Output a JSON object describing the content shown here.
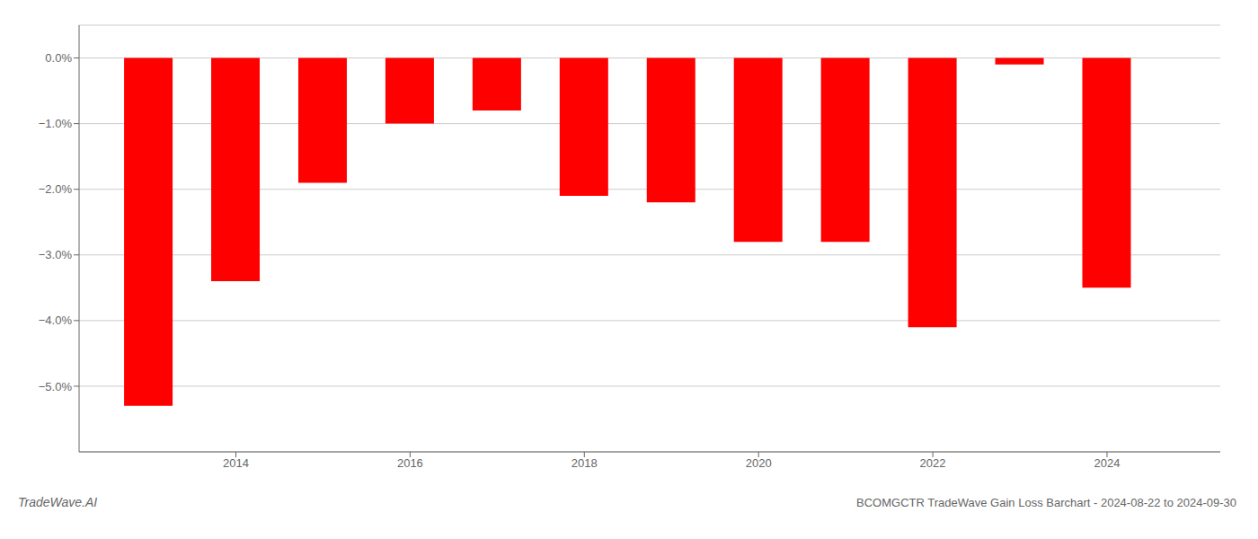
{
  "chart_data": {
    "type": "bar",
    "title": "BCOMGCTR TradeWave Gain Loss Barchart - 2024-08-22 to 2024-09-30",
    "annotations": [
      "TradeWave.AI"
    ],
    "x": [
      2013,
      2014,
      2015,
      2016,
      2017,
      2018,
      2019,
      2020,
      2021,
      2022,
      2023,
      2024
    ],
    "values": [
      -0.053,
      -0.034,
      -0.019,
      -0.01,
      -0.008,
      -0.021,
      -0.022,
      -0.028,
      -0.028,
      -0.041,
      -0.001,
      -0.035
    ],
    "color": "#ff0000",
    "xlim": [
      2012.2,
      2025.3
    ],
    "xticks": [
      2014,
      2016,
      2018,
      2020,
      2022,
      2024
    ],
    "ylim": [
      -0.06,
      0.005
    ],
    "yticks": [
      {
        "value": 0.0,
        "label": "0.0%"
      },
      {
        "value": -0.01,
        "label": "−1.0%"
      },
      {
        "value": -0.02,
        "label": "−2.0%"
      },
      {
        "value": -0.03,
        "label": "−3.0%"
      },
      {
        "value": -0.04,
        "label": "−4.0%"
      },
      {
        "value": -0.05,
        "label": "−5.0%"
      }
    ],
    "grid": true
  }
}
